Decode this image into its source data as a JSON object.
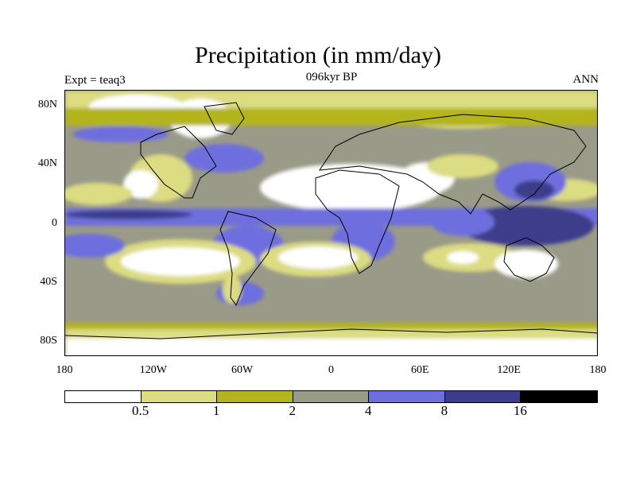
{
  "title": "Precipitation (in mm/day)",
  "subtitle_left": "Expt = teaq3",
  "subtitle_center": "096kyr BP",
  "subtitle_right": "ANN",
  "x_ticks": [
    "180",
    "120W",
    "60W",
    "0",
    "60E",
    "120E",
    "180"
  ],
  "y_ticks": [
    "80N",
    "40N",
    "0",
    "40S",
    "80S"
  ],
  "colorbar": {
    "levels": [
      "0.5",
      "1",
      "2",
      "4",
      "8",
      "16"
    ],
    "colors": [
      "#ffffff",
      "#dcdc82",
      "#b4b41e",
      "#9a9a88",
      "#6e6ede",
      "#3c3c8c",
      "#000000"
    ]
  },
  "chart_data": {
    "type": "heatmap",
    "title": "Precipitation (in mm/day)",
    "variable": "Precipitation",
    "units": "mm/day",
    "experiment": "teaq3",
    "period": "096kyr BP",
    "season": "ANN",
    "xlabel": "",
    "ylabel": "",
    "x_ticks": [
      "180",
      "120W",
      "60W",
      "0",
      "60E",
      "120E",
      "180"
    ],
    "y_ticks": [
      "80N",
      "40N",
      "0",
      "40S",
      "80S"
    ],
    "contour_levels": [
      0.5,
      1,
      2,
      4,
      8,
      16
    ]
  }
}
